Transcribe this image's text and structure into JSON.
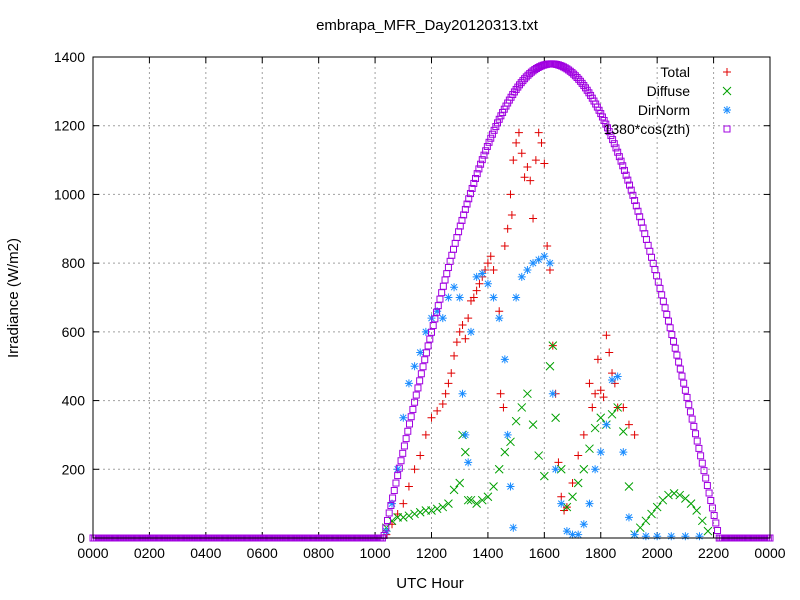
{
  "chart_data": {
    "type": "scatter",
    "title": "embrapa_MFR_Day20120313.txt",
    "xlabel": "UTC Hour",
    "ylabel": "Irradiance (W/m2)",
    "xlim": [
      0,
      2400
    ],
    "ylim": [
      0,
      1400
    ],
    "x_ticks": [
      "0000",
      "0200",
      "0400",
      "0600",
      "0800",
      "1000",
      "1200",
      "1400",
      "1600",
      "1800",
      "2000",
      "2200",
      "0000"
    ],
    "y_ticks": [
      "0",
      "200",
      "400",
      "600",
      "800",
      "1000",
      "1200",
      "1400"
    ],
    "grid": true,
    "legend_position": "top-right",
    "series": [
      {
        "name": "Total",
        "marker": "plus",
        "color": "#e00000",
        "points": [
          [
            1040,
            10
          ],
          [
            1060,
            40
          ],
          [
            1080,
            70
          ],
          [
            1100,
            100
          ],
          [
            1120,
            150
          ],
          [
            1140,
            200
          ],
          [
            1160,
            240
          ],
          [
            1180,
            300
          ],
          [
            1200,
            350
          ],
          [
            1220,
            370
          ],
          [
            1240,
            390
          ],
          [
            1250,
            420
          ],
          [
            1260,
            450
          ],
          [
            1270,
            480
          ],
          [
            1280,
            530
          ],
          [
            1290,
            570
          ],
          [
            1300,
            600
          ],
          [
            1310,
            620
          ],
          [
            1320,
            580
          ],
          [
            1330,
            640
          ],
          [
            1340,
            690
          ],
          [
            1350,
            700
          ],
          [
            1360,
            720
          ],
          [
            1370,
            740
          ],
          [
            1380,
            760
          ],
          [
            1390,
            780
          ],
          [
            1400,
            800
          ],
          [
            1410,
            820
          ],
          [
            1420,
            780
          ],
          [
            1440,
            660
          ],
          [
            1445,
            420
          ],
          [
            1455,
            380
          ],
          [
            1460,
            850
          ],
          [
            1470,
            900
          ],
          [
            1480,
            1000
          ],
          [
            1485,
            940
          ],
          [
            1490,
            1100
          ],
          [
            1500,
            1150
          ],
          [
            1510,
            1180
          ],
          [
            1520,
            1120
          ],
          [
            1530,
            1050
          ],
          [
            1540,
            1080
          ],
          [
            1550,
            1040
          ],
          [
            1560,
            930
          ],
          [
            1570,
            1100
          ],
          [
            1580,
            1180
          ],
          [
            1590,
            1150
          ],
          [
            1600,
            1090
          ],
          [
            1610,
            850
          ],
          [
            1620,
            780
          ],
          [
            1630,
            560
          ],
          [
            1640,
            420
          ],
          [
            1650,
            220
          ],
          [
            1660,
            120
          ],
          [
            1670,
            80
          ],
          [
            1680,
            90
          ],
          [
            1700,
            160
          ],
          [
            1720,
            240
          ],
          [
            1740,
            300
          ],
          [
            1760,
            450
          ],
          [
            1770,
            380
          ],
          [
            1780,
            420
          ],
          [
            1790,
            520
          ],
          [
            1800,
            430
          ],
          [
            1810,
            410
          ],
          [
            1820,
            590
          ],
          [
            1830,
            540
          ],
          [
            1840,
            480
          ],
          [
            1850,
            450
          ],
          [
            1860,
            380
          ],
          [
            1880,
            380
          ],
          [
            1900,
            330
          ],
          [
            1920,
            300
          ]
        ]
      },
      {
        "name": "Diffuse",
        "marker": "cross",
        "color": "#00a000",
        "points": [
          [
            1040,
            30
          ],
          [
            1060,
            50
          ],
          [
            1080,
            60
          ],
          [
            1100,
            60
          ],
          [
            1120,
            65
          ],
          [
            1140,
            70
          ],
          [
            1160,
            75
          ],
          [
            1180,
            80
          ],
          [
            1200,
            80
          ],
          [
            1220,
            85
          ],
          [
            1240,
            90
          ],
          [
            1260,
            100
          ],
          [
            1280,
            140
          ],
          [
            1300,
            160
          ],
          [
            1310,
            300
          ],
          [
            1320,
            250
          ],
          [
            1330,
            110
          ],
          [
            1340,
            110
          ],
          [
            1360,
            100
          ],
          [
            1380,
            110
          ],
          [
            1400,
            120
          ],
          [
            1420,
            150
          ],
          [
            1440,
            200
          ],
          [
            1460,
            250
          ],
          [
            1480,
            280
          ],
          [
            1500,
            340
          ],
          [
            1520,
            380
          ],
          [
            1540,
            420
          ],
          [
            1560,
            330
          ],
          [
            1580,
            240
          ],
          [
            1600,
            180
          ],
          [
            1620,
            500
          ],
          [
            1630,
            560
          ],
          [
            1640,
            350
          ],
          [
            1660,
            200
          ],
          [
            1680,
            90
          ],
          [
            1700,
            120
          ],
          [
            1720,
            160
          ],
          [
            1740,
            200
          ],
          [
            1760,
            260
          ],
          [
            1780,
            320
          ],
          [
            1800,
            350
          ],
          [
            1820,
            330
          ],
          [
            1840,
            360
          ],
          [
            1860,
            380
          ],
          [
            1880,
            310
          ],
          [
            1900,
            150
          ],
          [
            1920,
            10
          ],
          [
            1940,
            30
          ],
          [
            1960,
            50
          ],
          [
            1980,
            70
          ],
          [
            2000,
            90
          ],
          [
            2020,
            110
          ],
          [
            2040,
            125
          ],
          [
            2060,
            130
          ],
          [
            2080,
            125
          ],
          [
            2100,
            115
          ],
          [
            2120,
            100
          ],
          [
            2140,
            80
          ],
          [
            2160,
            50
          ],
          [
            2180,
            20
          ]
        ]
      },
      {
        "name": "DirNorm",
        "marker": "star",
        "color": "#1a8cff",
        "points": [
          [
            1040,
            20
          ],
          [
            1060,
            100
          ],
          [
            1080,
            200
          ],
          [
            1100,
            350
          ],
          [
            1120,
            450
          ],
          [
            1140,
            500
          ],
          [
            1160,
            540
          ],
          [
            1180,
            600
          ],
          [
            1200,
            640
          ],
          [
            1220,
            660
          ],
          [
            1240,
            640
          ],
          [
            1260,
            700
          ],
          [
            1280,
            730
          ],
          [
            1300,
            700
          ],
          [
            1310,
            420
          ],
          [
            1320,
            300
          ],
          [
            1330,
            220
          ],
          [
            1340,
            600
          ],
          [
            1360,
            760
          ],
          [
            1380,
            770
          ],
          [
            1400,
            740
          ],
          [
            1420,
            700
          ],
          [
            1440,
            640
          ],
          [
            1460,
            520
          ],
          [
            1470,
            300
          ],
          [
            1480,
            150
          ],
          [
            1490,
            30
          ],
          [
            1500,
            700
          ],
          [
            1520,
            760
          ],
          [
            1540,
            780
          ],
          [
            1560,
            800
          ],
          [
            1580,
            810
          ],
          [
            1600,
            820
          ],
          [
            1620,
            800
          ],
          [
            1630,
            420
          ],
          [
            1640,
            200
          ],
          [
            1660,
            100
          ],
          [
            1680,
            20
          ],
          [
            1700,
            10
          ],
          [
            1720,
            10
          ],
          [
            1740,
            40
          ],
          [
            1760,
            100
          ],
          [
            1780,
            200
          ],
          [
            1800,
            250
          ],
          [
            1820,
            330
          ],
          [
            1840,
            460
          ],
          [
            1860,
            470
          ],
          [
            1880,
            250
          ],
          [
            1900,
            60
          ],
          [
            1920,
            10
          ],
          [
            1960,
            5
          ],
          [
            2000,
            5
          ],
          [
            2050,
            5
          ],
          [
            2100,
            5
          ],
          [
            2150,
            5
          ]
        ]
      },
      {
        "name": "1380*cos(zth)",
        "marker": "square",
        "color": "#a000e0",
        "function": {
          "amplitude": 1380,
          "noon": 1625,
          "half_span": 595
        }
      }
    ]
  }
}
